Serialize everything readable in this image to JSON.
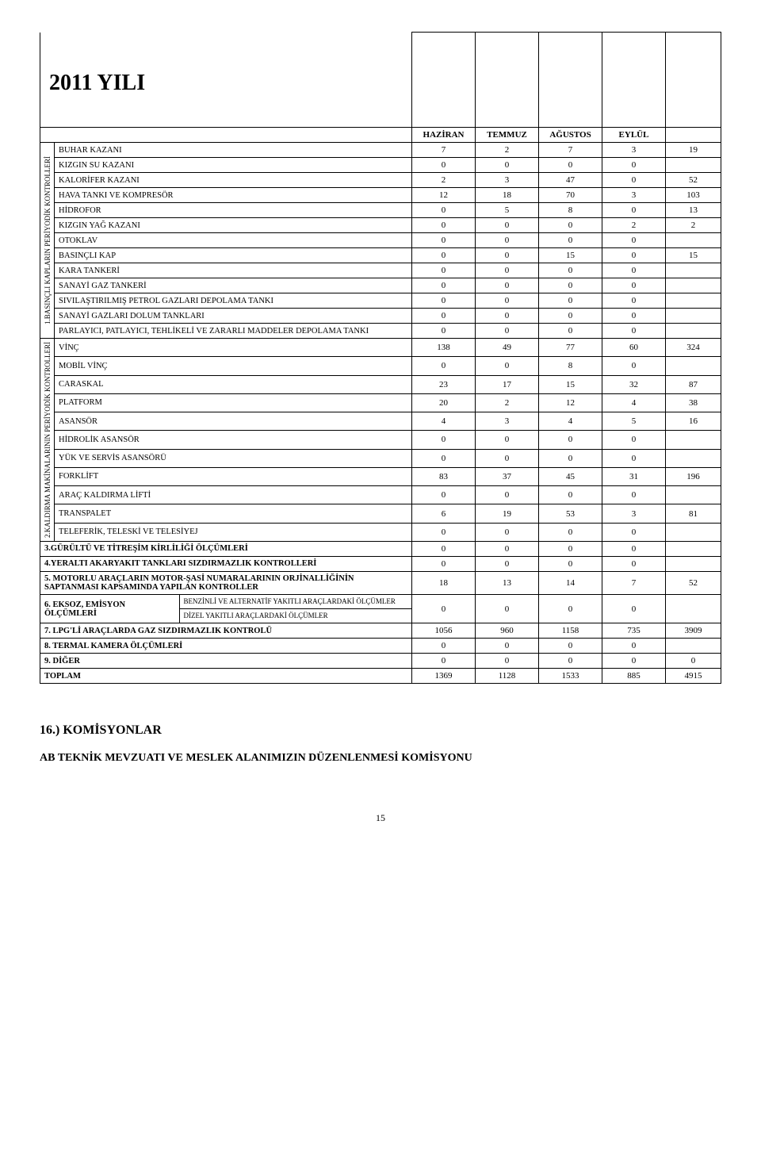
{
  "title": "2011 YILI",
  "table": {
    "month_headers": [
      "HAZİRAN",
      "TEMMUZ",
      "AĞUSTOS",
      "EYLÜL",
      ""
    ],
    "group1": {
      "vert_label": "1.BASINÇLI KAPLARIN PERİYODİK KONTROLLERİ",
      "rows": [
        {
          "label": "BUHAR KAZANI",
          "vals": [
            "7",
            "2",
            "7",
            "3",
            "19"
          ]
        },
        {
          "label": "KIZGIN SU KAZANI",
          "vals": [
            "0",
            "0",
            "0",
            "0",
            ""
          ]
        },
        {
          "label": "KALORİFER KAZANI",
          "vals": [
            "2",
            "3",
            "47",
            "0",
            "52"
          ]
        },
        {
          "label": "HAVA TANKI VE KOMPRESÖR",
          "vals": [
            "12",
            "18",
            "70",
            "3",
            "103"
          ]
        },
        {
          "label": "HİDROFOR",
          "vals": [
            "0",
            "5",
            "8",
            "0",
            "13"
          ]
        },
        {
          "label": "KIZGIN YAĞ KAZANI",
          "vals": [
            "0",
            "0",
            "0",
            "2",
            "2"
          ]
        },
        {
          "label": "OTOKLAV",
          "vals": [
            "0",
            "0",
            "0",
            "0",
            ""
          ]
        },
        {
          "label": "BASINÇLI KAP",
          "vals": [
            "0",
            "0",
            "15",
            "0",
            "15"
          ]
        },
        {
          "label": "KARA TANKERİ",
          "vals": [
            "0",
            "0",
            "0",
            "0",
            ""
          ]
        },
        {
          "label": "SANAYİ GAZ TANKERİ",
          "vals": [
            "0",
            "0",
            "0",
            "0",
            ""
          ]
        },
        {
          "label": "SIVILAŞTIRILMIŞ PETROL GAZLARI DEPOLAMA TANKI",
          "vals": [
            "0",
            "0",
            "0",
            "0",
            ""
          ]
        },
        {
          "label": "SANAYİ GAZLARI DOLUM TANKLARI",
          "vals": [
            "0",
            "0",
            "0",
            "0",
            ""
          ]
        },
        {
          "label": "PARLAYICI, PATLAYICI, TEHLİKELİ VE ZARARLI MADDELER DEPOLAMA TANKI",
          "vals": [
            "0",
            "0",
            "0",
            "0",
            ""
          ]
        }
      ]
    },
    "group2": {
      "vert_label": "2.KALDIRMA MAKİNALARININ PERİYODİK KONTROLLERİ",
      "rows": [
        {
          "label": "VİNÇ",
          "vals": [
            "138",
            "49",
            "77",
            "60",
            "324"
          ]
        },
        {
          "label": "MOBİL VİNÇ",
          "vals": [
            "0",
            "0",
            "8",
            "0",
            ""
          ]
        },
        {
          "label": "CARASKAL",
          "vals": [
            "23",
            "17",
            "15",
            "32",
            "87"
          ]
        },
        {
          "label": "PLATFORM",
          "vals": [
            "20",
            "2",
            "12",
            "4",
            "38"
          ]
        },
        {
          "label": "ASANSÖR",
          "vals": [
            "4",
            "3",
            "4",
            "5",
            "16"
          ]
        },
        {
          "label": "HİDROLİK ASANSÖR",
          "vals": [
            "0",
            "0",
            "0",
            "0",
            ""
          ]
        },
        {
          "label": "YÜK VE SERVİS ASANSÖRÜ",
          "vals": [
            "0",
            "0",
            "0",
            "0",
            ""
          ]
        },
        {
          "label": "FORKLİFT",
          "vals": [
            "83",
            "37",
            "45",
            "31",
            "196"
          ]
        },
        {
          "label": "ARAÇ KALDIRMA LİFTİ",
          "vals": [
            "0",
            "0",
            "0",
            "0",
            ""
          ]
        },
        {
          "label": "TRANSPALET",
          "vals": [
            "6",
            "19",
            "53",
            "3",
            "81"
          ]
        },
        {
          "label": "TELEFERİK, TELESKİ VE TELESİYEJ",
          "vals": [
            "0",
            "0",
            "0",
            "0",
            ""
          ]
        }
      ]
    },
    "footer_rows": [
      {
        "label": "3.GÜRÜLTÜ VE TİTREŞİM KİRLİLİĞİ ÖLÇÜMLERİ",
        "vals": [
          "0",
          "0",
          "0",
          "0",
          ""
        ]
      },
      {
        "label": "4.YERALTI AKARYAKIT TANKLARI SIZDIRMAZLIK KONTROLLERİ",
        "vals": [
          "0",
          "0",
          "0",
          "0",
          ""
        ]
      },
      {
        "label": "5. MOTORLU ARAÇLARIN MOTOR-ŞASİ NUMARALARININ ORJİNALLİĞİNİN SAPTANMASI KAPSAMINDA YAPILAN KONTROLLER",
        "vals": [
          "18",
          "13",
          "14",
          "7",
          "52"
        ]
      }
    ],
    "row6": {
      "label": "6. EKSOZ, EMİSYON ÖLÇÜMLERİ",
      "sub1": "BENZİNLİ VE ALTERNATİF YAKITLI ARAÇLARDAKİ ÖLÇÜMLER",
      "sub2": "DİZEL YAKITLI ARAÇLARDAKİ ÖLÇÜMLER",
      "vals": [
        "0",
        "0",
        "0",
        "0",
        ""
      ]
    },
    "footer_rows2": [
      {
        "label": "7. LPG'Lİ ARAÇLARDA GAZ SIZDIRMAZLIK KONTROLÜ",
        "vals": [
          "1056",
          "960",
          "1158",
          "735",
          "3909"
        ]
      },
      {
        "label": "8. TERMAL KAMERA ÖLÇÜMLERİ",
        "vals": [
          "0",
          "0",
          "0",
          "0",
          ""
        ]
      },
      {
        "label": "9. DİĞER",
        "vals": [
          "0",
          "0",
          "0",
          "0",
          "0"
        ]
      },
      {
        "label": "TOPLAM",
        "vals": [
          "1369",
          "1128",
          "1533",
          "885",
          "4915"
        ]
      }
    ]
  },
  "section_heading": "16.) KOMİSYONLAR",
  "sub_heading": "AB TEKNİK MEVZUATI VE MESLEK ALANIMIZIN DÜZENLENMESİ KOMİSYONU",
  "page_number": "15"
}
